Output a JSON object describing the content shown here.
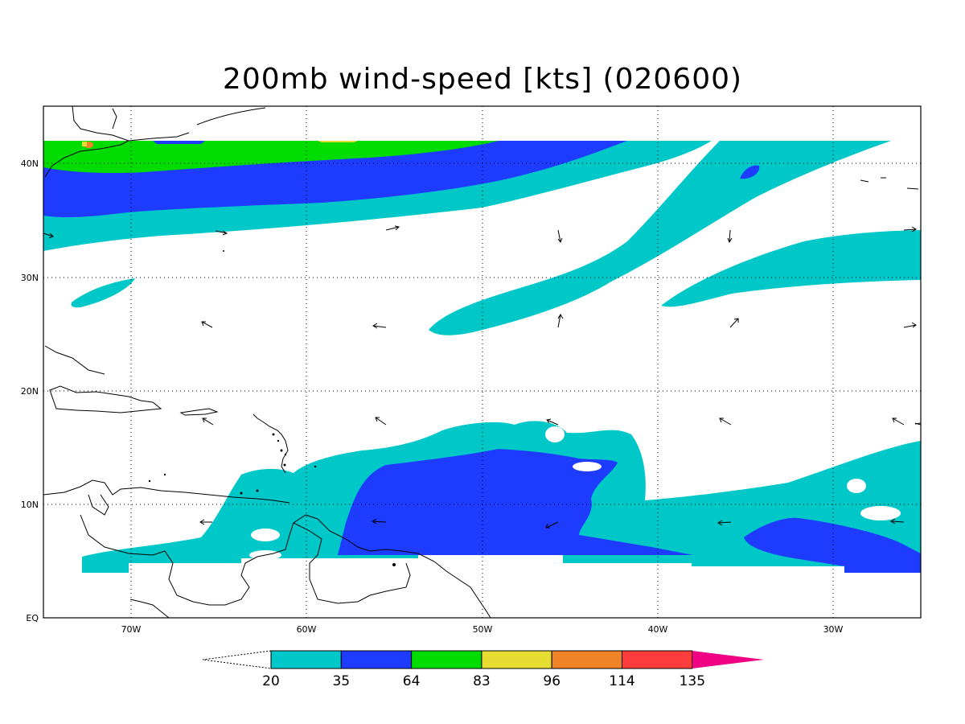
{
  "title": "200mb wind-speed [kts] (020600)",
  "axes": {
    "lat_labels": [
      "EQ",
      "10N",
      "20N",
      "30N",
      "40N"
    ],
    "lon_labels": [
      "70W",
      "60W",
      "50W",
      "40W",
      "30W"
    ]
  },
  "colorbar": {
    "labels": [
      "20",
      "35",
      "64",
      "83",
      "96",
      "114",
      "135"
    ],
    "colors": [
      "#00c8c8",
      "#1e3cff",
      "#00dc00",
      "#e6dc32",
      "#f08228",
      "#fa3c3c",
      "#f00082"
    ]
  },
  "chart_data": {
    "type": "map",
    "variable": "200mb wind-speed [kts]",
    "lon_range": [
      "75W",
      "25W"
    ],
    "lat_range": [
      "0",
      "45N"
    ],
    "contour_levels_kts": [
      20,
      35,
      64,
      83,
      96,
      114,
      135
    ]
  }
}
